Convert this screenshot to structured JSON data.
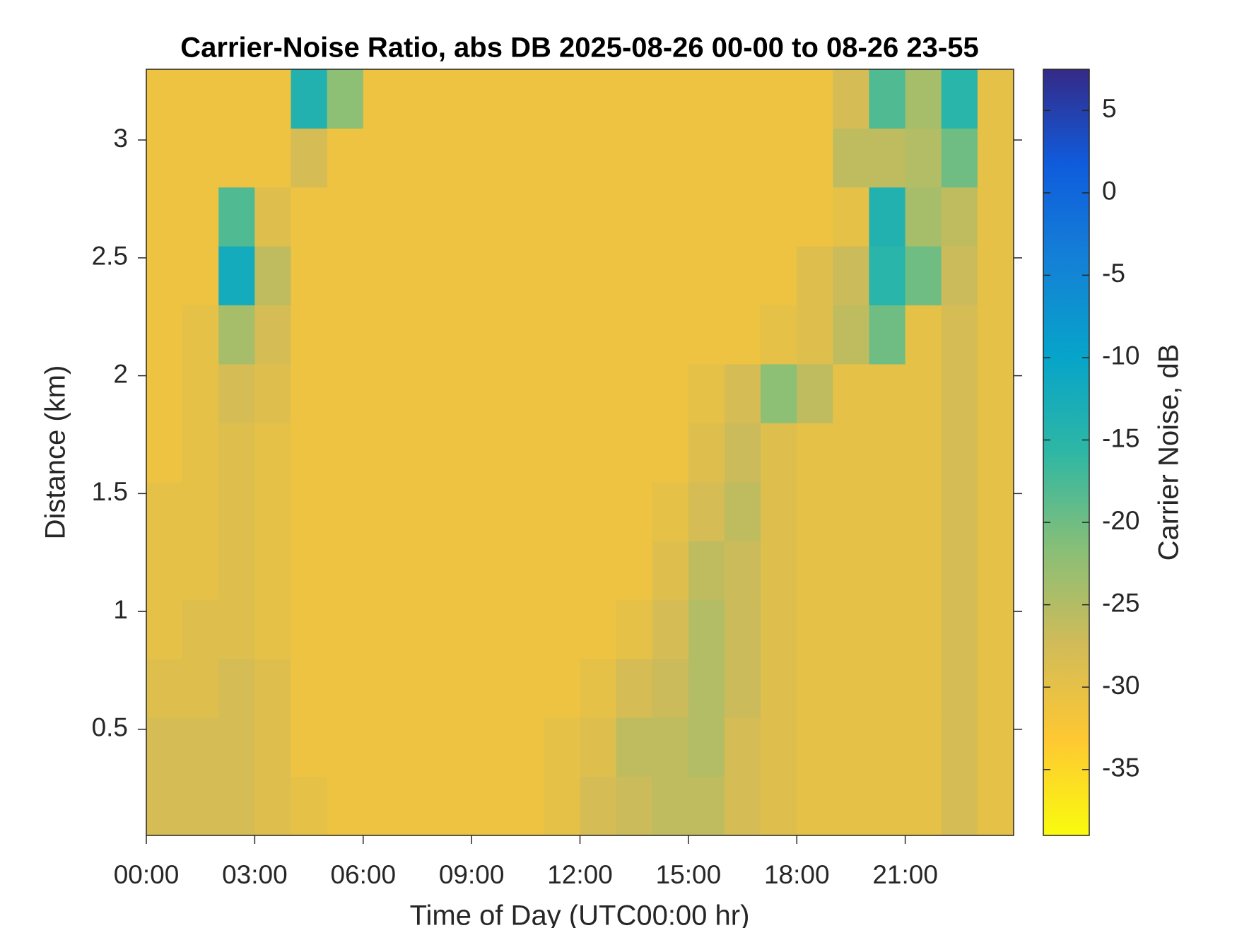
{
  "chart_data": {
    "type": "heatmap",
    "title": "Carrier-Noise Ratio, abs DB 2025-08-26 00-00 to 08-26 23-55",
    "x_label": "Time of Day (UTC00:00 hr)",
    "y_label": "Distance (km)",
    "colorbar_label": "Carrier Noise, dB",
    "xlim": [
      0,
      24
    ],
    "xticks": [
      {
        "value": 0,
        "label": "00:00"
      },
      {
        "value": 3,
        "label": "03:00"
      },
      {
        "value": 6,
        "label": "06:00"
      },
      {
        "value": 9,
        "label": "09:00"
      },
      {
        "value": 12,
        "label": "12:00"
      },
      {
        "value": 15,
        "label": "15:00"
      },
      {
        "value": 18,
        "label": "18:00"
      },
      {
        "value": 21,
        "label": "21:00"
      }
    ],
    "ylim": [
      0.05,
      3.3
    ],
    "yticks": [
      0.5,
      1,
      1.5,
      2,
      2.5,
      3
    ],
    "clim": [
      -39,
      7.5
    ],
    "cticks": [
      -35,
      -30,
      -25,
      -20,
      -15,
      -10,
      -5,
      0,
      5
    ],
    "colormap": [
      "#f9fb0e",
      "#fec832",
      "#d1bb59",
      "#87bf77",
      "#2eb7a4",
      "#06a4ca",
      "#1481d6",
      "#0f5cdd",
      "#352a87"
    ],
    "x": [
      0.5,
      1.5,
      2.5,
      3.5,
      4.5,
      5.5,
      6.5,
      7.5,
      8.5,
      9.5,
      10.5,
      11.5,
      12.5,
      13.5,
      14.5,
      15.5,
      16.5,
      17.5,
      18.5,
      19.5,
      20.5,
      21.5,
      22.5,
      23.5
    ],
    "y": [
      0.175,
      0.425,
      0.675,
      0.925,
      1.175,
      1.425,
      1.675,
      1.925,
      2.175,
      2.425,
      2.675,
      2.925,
      3.175
    ],
    "z": [
      [
        -28,
        -28,
        -28,
        -29,
        -30,
        -31,
        -31,
        -31,
        -31,
        -31,
        -31,
        -30,
        -28,
        -27,
        -26,
        -26,
        -28,
        -29,
        -30,
        -30,
        -30,
        -30,
        -28,
        -30
      ],
      [
        -28,
        -28,
        -28,
        -29,
        -31,
        -31,
        -31,
        -31,
        -31,
        -31,
        -31,
        -30,
        -29,
        -26,
        -26,
        -25,
        -28,
        -29,
        -30,
        -30,
        -30,
        -30,
        -28,
        -30
      ],
      [
        -29,
        -29,
        -28,
        -29,
        -31,
        -31,
        -31,
        -31,
        -31,
        -31,
        -31,
        -31,
        -30,
        -28,
        -27,
        -25,
        -27,
        -29,
        -30,
        -30,
        -30,
        -30,
        -28,
        -30
      ],
      [
        -30,
        -29,
        -29,
        -30,
        -31,
        -31,
        -31,
        -31,
        -31,
        -31,
        -31,
        -31,
        -31,
        -30,
        -28,
        -25,
        -27,
        -29,
        -30,
        -30,
        -30,
        -30,
        -28,
        -30
      ],
      [
        -30,
        -30,
        -29,
        -30,
        -31,
        -31,
        -31,
        -31,
        -31,
        -31,
        -31,
        -31,
        -31,
        -31,
        -29,
        -26,
        -27,
        -29,
        -30,
        -30,
        -30,
        -30,
        -28,
        -30
      ],
      [
        -30,
        -30,
        -29,
        -30,
        -31,
        -31,
        -31,
        -31,
        -31,
        -31,
        -31,
        -31,
        -31,
        -31,
        -30,
        -28,
        -26,
        -29,
        -30,
        -30,
        -30,
        -30,
        -28,
        -30
      ],
      [
        -31,
        -30,
        -29,
        -30,
        -31,
        -31,
        -31,
        -31,
        -31,
        -31,
        -31,
        -31,
        -31,
        -31,
        -31,
        -29,
        -27,
        -29,
        -30,
        -30,
        -30,
        -30,
        -28,
        -30
      ],
      [
        -31,
        -30,
        -28,
        -29,
        -31,
        -31,
        -31,
        -31,
        -31,
        -31,
        -31,
        -31,
        -31,
        -31,
        -31,
        -30,
        -28,
        -22,
        -26,
        -30,
        -30,
        -30,
        -28,
        -30
      ],
      [
        -31,
        -30,
        -24,
        -28,
        -31,
        -31,
        -31,
        -31,
        -31,
        -31,
        -31,
        -31,
        -31,
        -31,
        -31,
        -31,
        -31,
        -30,
        -29,
        -26,
        -20,
        -30,
        -28,
        -30
      ],
      [
        -31,
        -31,
        -12,
        -26,
        -31,
        -31,
        -31,
        -31,
        -31,
        -31,
        -31,
        -31,
        -31,
        -31,
        -31,
        -31,
        -31,
        -31,
        -29,
        -27,
        -15,
        -20,
        -27,
        -30
      ],
      [
        -31,
        -31,
        -18,
        -29,
        -31,
        -31,
        -31,
        -31,
        -31,
        -31,
        -31,
        -31,
        -31,
        -31,
        -31,
        -31,
        -31,
        -31,
        -31,
        -30,
        -14,
        -24,
        -26,
        -30
      ],
      [
        -31,
        -31,
        -31,
        -31,
        -28,
        -31,
        -31,
        -31,
        -31,
        -31,
        -31,
        -31,
        -31,
        -31,
        -31,
        -31,
        -31,
        -31,
        -31,
        -26,
        -26,
        -25,
        -20,
        -30
      ],
      [
        -31,
        -31,
        -31,
        -31,
        -14,
        -22,
        -31,
        -31,
        -31,
        -31,
        -31,
        -31,
        -31,
        -31,
        -31,
        -31,
        -31,
        -31,
        -31,
        -28,
        -18,
        -24,
        -15,
        -30
      ]
    ]
  }
}
